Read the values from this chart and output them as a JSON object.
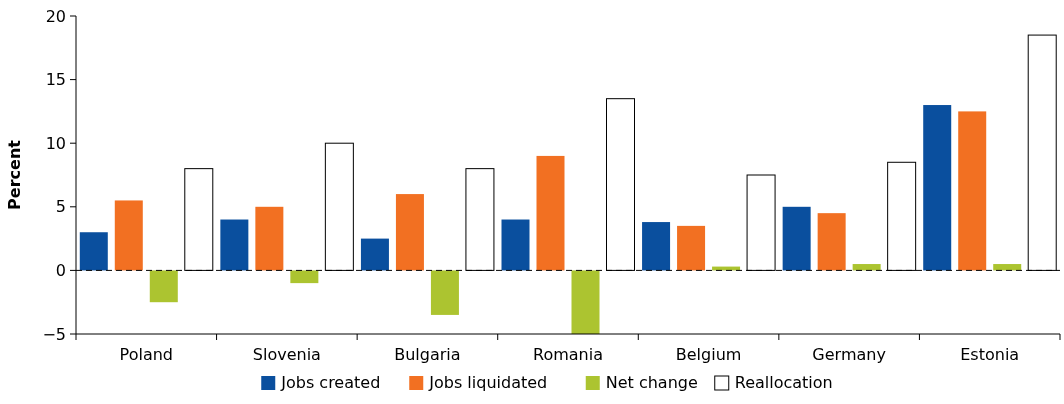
{
  "chart_data": {
    "type": "bar",
    "ylabel": "Percent",
    "categories": [
      "Poland",
      "Slovenia",
      "Bulgaria",
      "Romania",
      "Belgium",
      "Germany",
      "Estonia"
    ],
    "series": [
      {
        "name": "Jobs created",
        "color": "#0a4f9e",
        "values": [
          3,
          4,
          2.5,
          4,
          3.8,
          5,
          13
        ]
      },
      {
        "name": "Jobs liquidated",
        "color": "#f27022",
        "values": [
          5.5,
          5,
          6,
          9,
          3.5,
          4.5,
          12.5
        ]
      },
      {
        "name": "Net change",
        "color": "#acc430",
        "values": [
          -2.5,
          -1,
          -3.5,
          -5,
          0.3,
          0.5,
          0.5
        ]
      },
      {
        "name": "Reallocation",
        "color": "#ffffff",
        "values": [
          8,
          10,
          8,
          13.5,
          7.5,
          8.5,
          18.5
        ]
      }
    ],
    "ylim": [
      -5,
      20
    ],
    "yticks": [
      -5,
      0,
      5,
      10,
      15,
      20
    ],
    "ref_lines": [
      {
        "axis": "y",
        "value": 0,
        "line_style": "dashed",
        "color": "#000000"
      }
    ],
    "legend": "bottom"
  }
}
